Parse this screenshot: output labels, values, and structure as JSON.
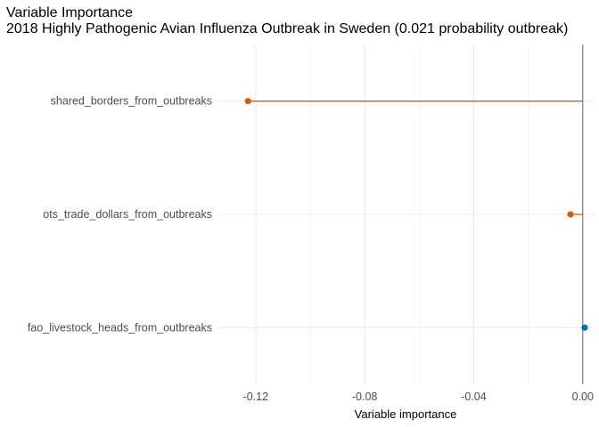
{
  "chart_data": {
    "type": "lollipop",
    "title": "Variable Importance",
    "subtitle": "2018 Highly Pathogenic Avian Influenza Outbreak in Sweden (0.021 probability outbreak)",
    "xlabel": "Variable importance",
    "ylabel": "",
    "xlim": [
      -0.134,
      0.004
    ],
    "xticks": [
      -0.12,
      -0.08,
      -0.04,
      0.0
    ],
    "xtick_labels": [
      "-0.12",
      "-0.08",
      "-0.04",
      "0.00"
    ],
    "grid": true,
    "categories": [
      "shared_borders_from_outbreaks",
      "ots_trade_dollars_from_outbreaks",
      "fao_livestock_heads_from_outbreaks"
    ],
    "values": [
      -0.1228,
      -0.0045,
      0.0007
    ],
    "colors": {
      "negative": "#d55e00",
      "positive": "#0072b2",
      "grid": "#ebebeb",
      "zero_line": "#808080"
    }
  }
}
